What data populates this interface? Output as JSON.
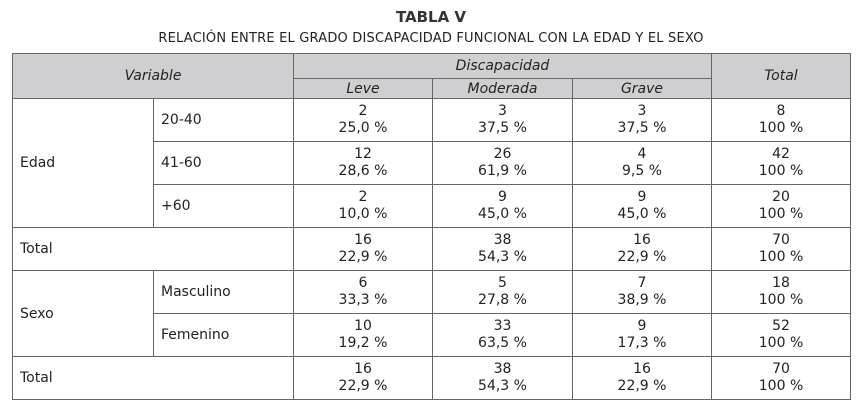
{
  "title": "TABLA V",
  "subtitle": "RELACIÓN ENTRE EL GRADO DISCAPACIDAD FUNCIONAL CON LA EDAD Y EL SEXO",
  "header": {
    "variable": "Variable",
    "discapacidad": "Discapacidad",
    "leve": "Leve",
    "moderada": "Moderada",
    "grave": "Grave",
    "total": "Total"
  },
  "groups": [
    {
      "label": "Edad",
      "rows": [
        {
          "sub": "20-40",
          "leve": [
            "2",
            "25,0 %"
          ],
          "moderada": [
            "3",
            "37,5 %"
          ],
          "grave": [
            "3",
            "37,5 %"
          ],
          "total": [
            "8",
            "100 %"
          ]
        },
        {
          "sub": "41-60",
          "leve": [
            "12",
            "28,6 %"
          ],
          "moderada": [
            "26",
            "61,9 %"
          ],
          "grave": [
            "4",
            "9,5 %"
          ],
          "total": [
            "42",
            "100 %"
          ]
        },
        {
          "sub": "+60",
          "leve": [
            "2",
            "10,0 %"
          ],
          "moderada": [
            "9",
            "45,0 %"
          ],
          "grave": [
            "9",
            "45,0 %"
          ],
          "total": [
            "20",
            "100 %"
          ]
        }
      ],
      "total": {
        "label": "Total",
        "leve": [
          "16",
          "22,9 %"
        ],
        "moderada": [
          "38",
          "54,3 %"
        ],
        "grave": [
          "16",
          "22,9 %"
        ],
        "total": [
          "70",
          "100 %"
        ]
      }
    },
    {
      "label": "Sexo",
      "rows": [
        {
          "sub": "Masculino",
          "leve": [
            "6",
            "33,3 %"
          ],
          "moderada": [
            "5",
            "27,8 %"
          ],
          "grave": [
            "7",
            "38,9 %"
          ],
          "total": [
            "18",
            "100 %"
          ]
        },
        {
          "sub": "Femenino",
          "leve": [
            "10",
            "19,2 %"
          ],
          "moderada": [
            "33",
            "63,5 %"
          ],
          "grave": [
            "9",
            "17,3 %"
          ],
          "total": [
            "52",
            "100 %"
          ]
        }
      ],
      "total": {
        "label": "Total",
        "leve": [
          "16",
          "22,9 %"
        ],
        "moderada": [
          "38",
          "54,3 %"
        ],
        "grave": [
          "16",
          "22,9 %"
        ],
        "total": [
          "70",
          "100 %"
        ]
      }
    }
  ]
}
